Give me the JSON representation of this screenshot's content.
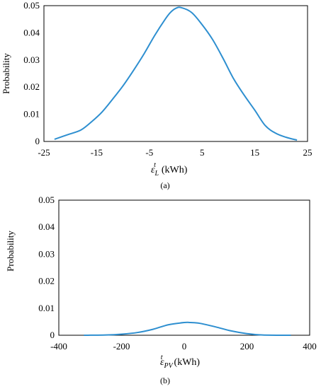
{
  "chart_data": [
    {
      "type": "line",
      "ylabel": "Probability",
      "xlabel_symbol": "ε",
      "xlabel_sup": "t",
      "xlabel_sub": "L",
      "xlabel_unit": "(kWh)",
      "caption": "(a)",
      "xlim": [
        -25,
        25
      ],
      "ylim": [
        0,
        0.05
      ],
      "xticks": [
        "-25",
        "-15",
        "-5",
        "5",
        "15",
        "25"
      ],
      "xtick_values": [
        -25,
        -15,
        -5,
        5,
        15,
        25
      ],
      "yticks": [
        "0",
        "0.01",
        "0.02",
        "0.03",
        "0.04",
        "0.05"
      ],
      "ytick_values": [
        0,
        0.01,
        0.02,
        0.03,
        0.04,
        0.05
      ],
      "grid": false,
      "series": [
        {
          "color": "#2e8fd0",
          "x": [
            -23,
            -20.5,
            -18,
            -16,
            -14,
            -12,
            -10,
            -8,
            -6,
            -4,
            -2,
            -1,
            0,
            1,
            3,
            5,
            7,
            9,
            11,
            13,
            15,
            17,
            19,
            21,
            23
          ],
          "y": [
            0.0008,
            0.0025,
            0.0042,
            0.0072,
            0.0108,
            0.0155,
            0.0205,
            0.0262,
            0.0323,
            0.039,
            0.045,
            0.0475,
            0.049,
            0.0493,
            0.0475,
            0.043,
            0.0375,
            0.0305,
            0.023,
            0.017,
            0.0115,
            0.0058,
            0.003,
            0.0015,
            0.0005
          ]
        }
      ]
    },
    {
      "type": "line",
      "ylabel": "Probability",
      "xlabel_symbol": "ε",
      "xlabel_sup": "t",
      "xlabel_sub": "PV",
      "xlabel_unit": "(kWh)",
      "caption": "(b)",
      "xlim": [
        -400,
        400
      ],
      "ylim": [
        0,
        0.05
      ],
      "xticks": [
        "-400",
        "-200",
        "0",
        "200",
        "400"
      ],
      "xtick_values": [
        -400,
        -200,
        0,
        200,
        400
      ],
      "yticks": [
        "0",
        "0.01",
        "0.02",
        "0.03",
        "0.04",
        "0.05"
      ],
      "ytick_values": [
        0,
        0.01,
        0.02,
        0.03,
        0.04,
        0.05
      ],
      "grid": false,
      "series": [
        {
          "color": "#2e8fd0",
          "x": [
            -320,
            -250,
            -200,
            -150,
            -100,
            -50,
            0,
            20,
            50,
            100,
            150,
            200,
            250,
            340
          ],
          "y": [
            0.0,
            0.0001,
            0.0004,
            0.001,
            0.0022,
            0.0039,
            0.0047,
            0.0047,
            0.0044,
            0.0031,
            0.0016,
            0.0006,
            0.0001,
            0.0
          ]
        }
      ]
    }
  ]
}
